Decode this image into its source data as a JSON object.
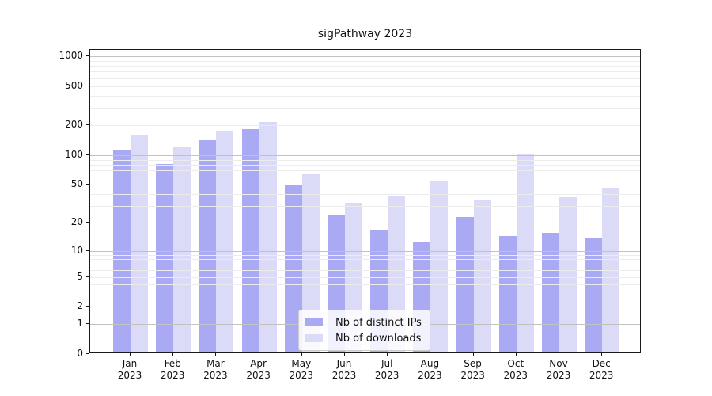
{
  "title": "sigPathway 2023",
  "legend": {
    "items": [
      {
        "label": "Nb of distinct IPs"
      },
      {
        "label": "Nb of downloads"
      }
    ]
  },
  "chart_data": {
    "type": "bar",
    "title": "sigPathway 2023",
    "categories": [
      "Jan 2023",
      "Feb 2023",
      "Mar 2023",
      "Apr 2023",
      "May 2023",
      "Jun 2023",
      "Jul 2023",
      "Aug 2023",
      "Sep 2023",
      "Oct 2023",
      "Nov 2023",
      "Dec 2023"
    ],
    "series": [
      {
        "name": "Nb of distinct IPs",
        "color": "#a9a9f4",
        "values": [
          108,
          78,
          137,
          177,
          47,
          23,
          16,
          12,
          22,
          14,
          15,
          13
        ]
      },
      {
        "name": "Nb of downloads",
        "color": "#dbdbf8",
        "values": [
          157,
          117,
          172,
          210,
          61,
          31,
          37,
          53,
          34,
          98,
          36,
          44
        ]
      }
    ],
    "xlabel": "",
    "ylabel": "",
    "yscale": "log1p",
    "ylim": [
      0,
      1160
    ],
    "yticks": [
      0,
      1,
      2,
      5,
      10,
      20,
      50,
      100,
      200,
      500,
      1000
    ],
    "major_gridlines": [
      1,
      10,
      100,
      1000
    ],
    "minor_gridlines": [
      2,
      3,
      4,
      5,
      6,
      7,
      8,
      9,
      20,
      30,
      40,
      50,
      60,
      70,
      80,
      90,
      200,
      300,
      400,
      500,
      600,
      700,
      800,
      900
    ],
    "grid": true,
    "legend_position": "lower center"
  },
  "colors": {
    "bar_distinct_ips": "#a9a9f4",
    "bar_downloads": "#dbdbf8",
    "grid_minor": "#ececec",
    "grid_major": "#c2c2c2",
    "axis": "#1a1a1a",
    "background": "#ffffff"
  }
}
